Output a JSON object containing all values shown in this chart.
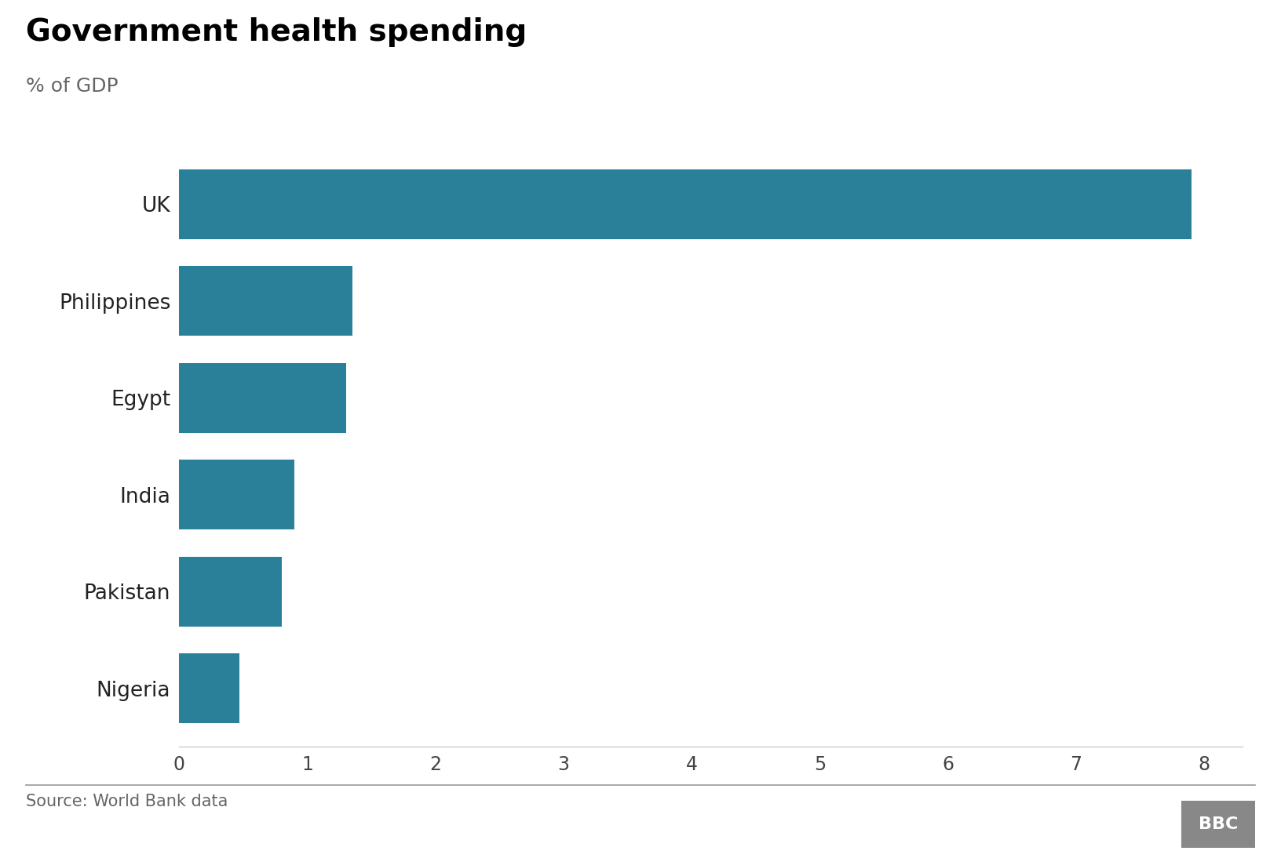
{
  "title": "Government health spending",
  "subtitle": "% of GDP",
  "categories": [
    "UK",
    "Philippines",
    "Egypt",
    "India",
    "Pakistan",
    "Nigeria"
  ],
  "values": [
    7.9,
    1.35,
    1.3,
    0.9,
    0.8,
    0.47
  ],
  "bar_color": "#2a8099",
  "xlim": [
    0,
    8.3
  ],
  "xticks": [
    0,
    1,
    2,
    3,
    4,
    5,
    6,
    7,
    8
  ],
  "source_text": "Source: World Bank data",
  "bbc_text": "BBC",
  "background_color": "#ffffff",
  "title_fontsize": 28,
  "subtitle_fontsize": 18,
  "tick_fontsize": 17,
  "label_fontsize": 19,
  "source_fontsize": 15,
  "bar_height": 0.72
}
